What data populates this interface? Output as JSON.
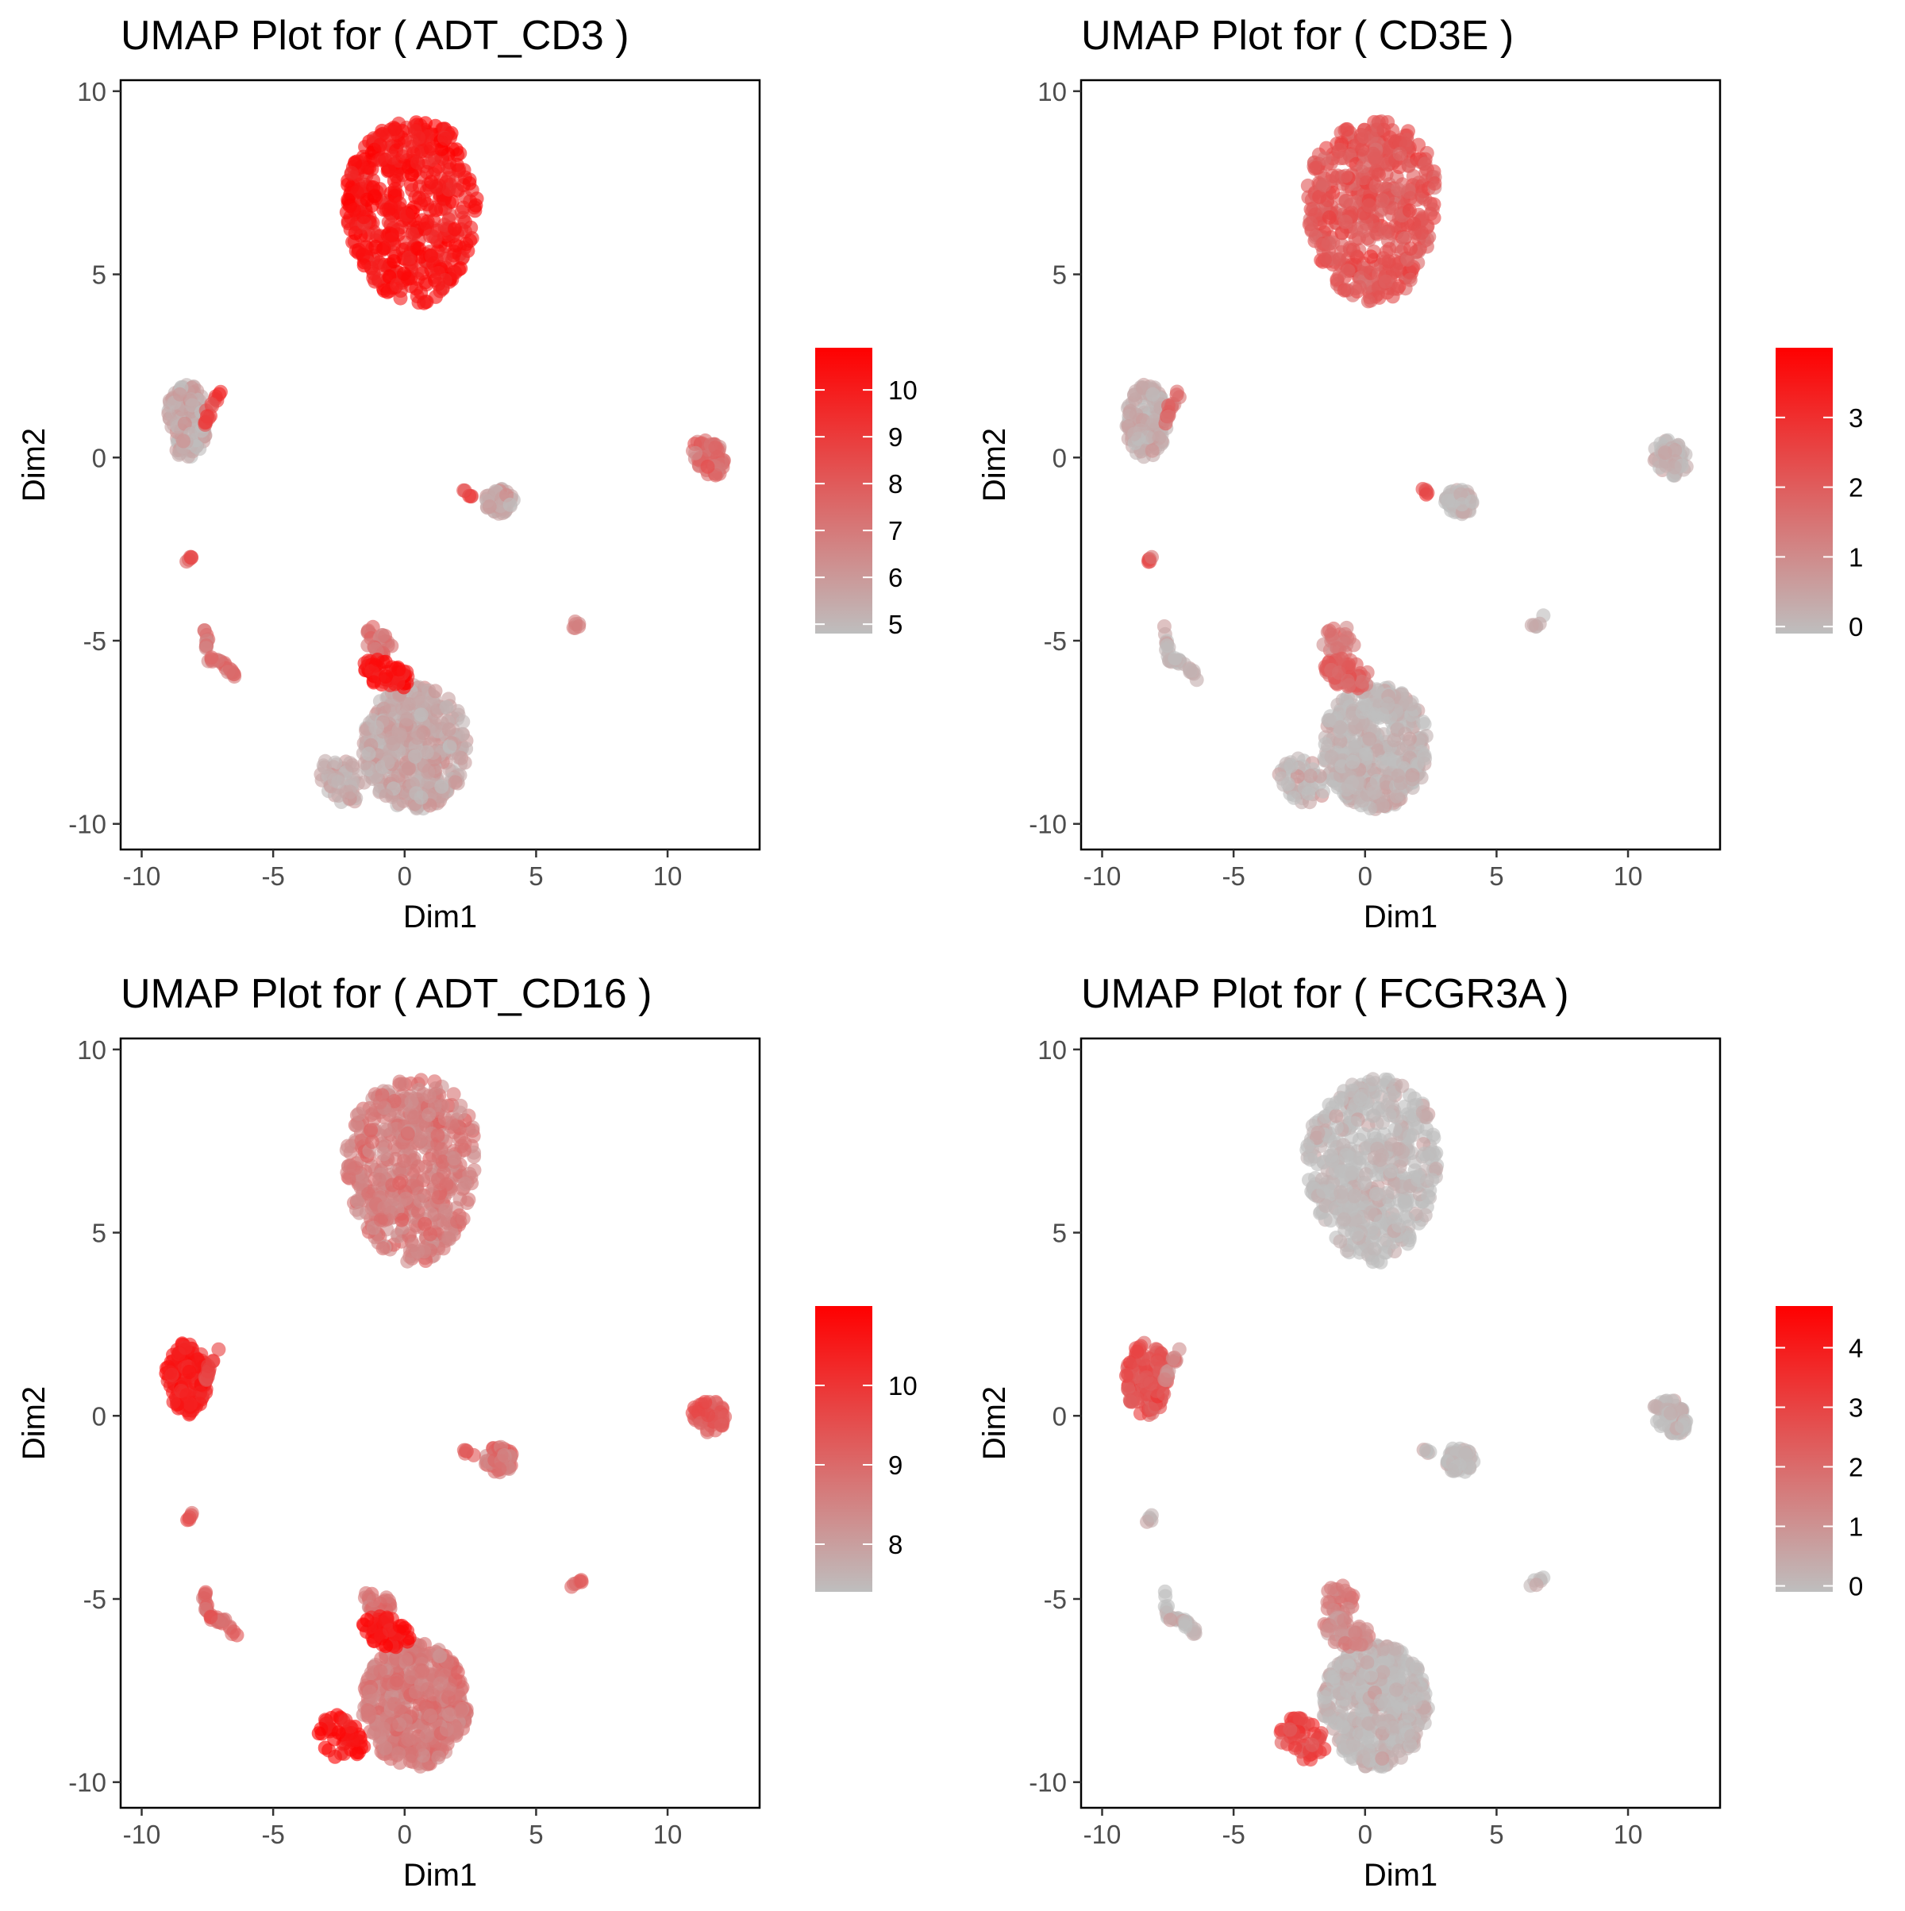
{
  "chart_data": [
    {
      "type": "scatter",
      "title": "UMAP Plot for ( ADT_CD3 )",
      "xlabel": "Dim1",
      "ylabel": "Dim2",
      "xlim": [
        -10.8,
        13.5
      ],
      "ylim": [
        -10.7,
        10.3
      ],
      "xticks": [
        "-10",
        "-5",
        "0",
        "5",
        "10"
      ],
      "yticks": [
        "-10",
        "-5",
        "0",
        "5",
        "10"
      ],
      "grid": false,
      "legend": {
        "placement": "right",
        "min": 4.8,
        "max": 10.9,
        "ticks": [
          5,
          6,
          7,
          8,
          9,
          10
        ],
        "low_color": "#bebebe",
        "high_color": "#ff0000"
      },
      "clusters": [
        {
          "name": "top",
          "level": 0.88
        },
        {
          "name": "left",
          "level": 0.1
        },
        {
          "name": "left-arm",
          "level": 0.7
        },
        {
          "name": "mid",
          "level": 0.12
        },
        {
          "name": "mid-stub",
          "level": 0.6
        },
        {
          "name": "right",
          "level": 0.45
        },
        {
          "name": "small-left",
          "level": 0.55
        },
        {
          "name": "strand",
          "level": 0.4
        },
        {
          "name": "dot-right",
          "level": 0.35
        },
        {
          "name": "bottom",
          "level": 0.12
        },
        {
          "name": "bottom-top",
          "level": 0.4
        },
        {
          "name": "bottom-cap",
          "level": 0.9
        },
        {
          "name": "bottom-left",
          "level": 0.1
        }
      ]
    },
    {
      "type": "scatter",
      "title": "UMAP Plot for ( CD3E )",
      "xlabel": "Dim1",
      "ylabel": "Dim2",
      "xlim": [
        -10.8,
        13.5
      ],
      "ylim": [
        -10.7,
        10.3
      ],
      "xticks": [
        "-10",
        "-5",
        "0",
        "5",
        "10"
      ],
      "yticks": [
        "-10",
        "-5",
        "0",
        "5",
        "10"
      ],
      "grid": false,
      "legend": {
        "placement": "right",
        "min": -0.1,
        "max": 4.0,
        "ticks": [
          0,
          1,
          2,
          3
        ],
        "low_color": "#bebebe",
        "high_color": "#ff0000"
      },
      "clusters": [
        {
          "name": "top",
          "level": 0.55
        },
        {
          "name": "left",
          "level": 0.08
        },
        {
          "name": "left-arm",
          "level": 0.45
        },
        {
          "name": "mid",
          "level": 0.02
        },
        {
          "name": "mid-stub",
          "level": 0.6
        },
        {
          "name": "right",
          "level": 0.05
        },
        {
          "name": "small-left",
          "level": 0.5
        },
        {
          "name": "strand",
          "level": 0.05
        },
        {
          "name": "dot-right",
          "level": 0.05
        },
        {
          "name": "bottom",
          "level": 0.04
        },
        {
          "name": "bottom-top",
          "level": 0.35
        },
        {
          "name": "bottom-cap",
          "level": 0.5
        },
        {
          "name": "bottom-left",
          "level": 0.05
        }
      ]
    },
    {
      "type": "scatter",
      "title": "UMAP Plot for ( ADT_CD16 )",
      "xlabel": "Dim1",
      "ylabel": "Dim2",
      "xlim": [
        -10.8,
        13.5
      ],
      "ylim": [
        -10.7,
        10.3
      ],
      "xticks": [
        "-10",
        "-5",
        "0",
        "5",
        "10"
      ],
      "yticks": [
        "-10",
        "-5",
        "0",
        "5",
        "10"
      ],
      "grid": false,
      "legend": {
        "placement": "right",
        "min": 7.4,
        "max": 11.0,
        "ticks": [
          8,
          9,
          10
        ],
        "low_color": "#bebebe",
        "high_color": "#ff0000"
      },
      "clusters": [
        {
          "name": "top",
          "level": 0.35
        },
        {
          "name": "left",
          "level": 0.85
        },
        {
          "name": "left-arm",
          "level": 0.65
        },
        {
          "name": "mid",
          "level": 0.4
        },
        {
          "name": "mid-stub",
          "level": 0.5
        },
        {
          "name": "right",
          "level": 0.55
        },
        {
          "name": "small-left",
          "level": 0.5
        },
        {
          "name": "strand",
          "level": 0.45
        },
        {
          "name": "dot-right",
          "level": 0.5
        },
        {
          "name": "bottom",
          "level": 0.35
        },
        {
          "name": "bottom-top",
          "level": 0.4
        },
        {
          "name": "bottom-cap",
          "level": 0.92
        },
        {
          "name": "bottom-left",
          "level": 0.9
        }
      ]
    },
    {
      "type": "scatter",
      "title": "UMAP Plot for ( FCGR3A )",
      "xlabel": "Dim1",
      "ylabel": "Dim2",
      "xlim": [
        -10.8,
        13.5
      ],
      "ylim": [
        -10.7,
        10.3
      ],
      "xticks": [
        "-10",
        "-5",
        "0",
        "5",
        "10"
      ],
      "yticks": [
        "-10",
        "-5",
        "0",
        "5",
        "10"
      ],
      "grid": false,
      "legend": {
        "placement": "right",
        "min": -0.1,
        "max": 4.7,
        "ticks": [
          0,
          1,
          2,
          3,
          4
        ],
        "low_color": "#bebebe",
        "high_color": "#ff0000"
      },
      "clusters": [
        {
          "name": "top",
          "level": 0.0
        },
        {
          "name": "left",
          "level": 0.55
        },
        {
          "name": "left-arm",
          "level": 0.3
        },
        {
          "name": "mid",
          "level": 0.0
        },
        {
          "name": "mid-stub",
          "level": 0.02
        },
        {
          "name": "right",
          "level": 0.0
        },
        {
          "name": "small-left",
          "level": 0.02
        },
        {
          "name": "strand",
          "level": 0.02
        },
        {
          "name": "dot-right",
          "level": 0.02
        },
        {
          "name": "bottom",
          "level": 0.03
        },
        {
          "name": "bottom-top",
          "level": 0.35
        },
        {
          "name": "bottom-cap",
          "level": 0.3
        },
        {
          "name": "bottom-left",
          "level": 0.65
        }
      ]
    }
  ]
}
